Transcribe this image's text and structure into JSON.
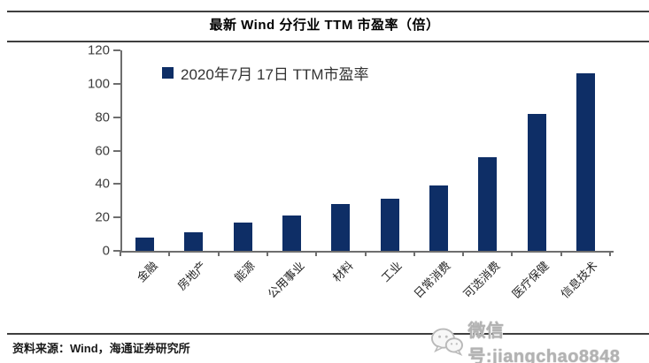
{
  "header": {
    "title": "最新 Wind 分行业 TTM 市盈率（倍）"
  },
  "chart_data": {
    "type": "bar",
    "title": "最新 Wind 分行业 TTM 市盈率（倍）",
    "legend": "2020年7月 17日 TTM市盈率",
    "categories": [
      "金融",
      "房地产",
      "能源",
      "公用事业",
      "材料",
      "工业",
      "日常消费",
      "可选消费",
      "医疗保健",
      "信息技术"
    ],
    "values": [
      8,
      11,
      17,
      21,
      28,
      31,
      39,
      56,
      82,
      106
    ],
    "xlabel": "",
    "ylabel": "",
    "ylim": [
      0,
      120
    ],
    "yticks": [
      0,
      20,
      40,
      60,
      80,
      100,
      120
    ],
    "grid": false,
    "legend_position": "top-left",
    "bar_color": "#0e2e66"
  },
  "footer": {
    "source": "资料来源：Wind，海通证券研究所"
  },
  "watermark": {
    "icon": "wechat-icon",
    "label": "微信号:jiangchao8848"
  }
}
